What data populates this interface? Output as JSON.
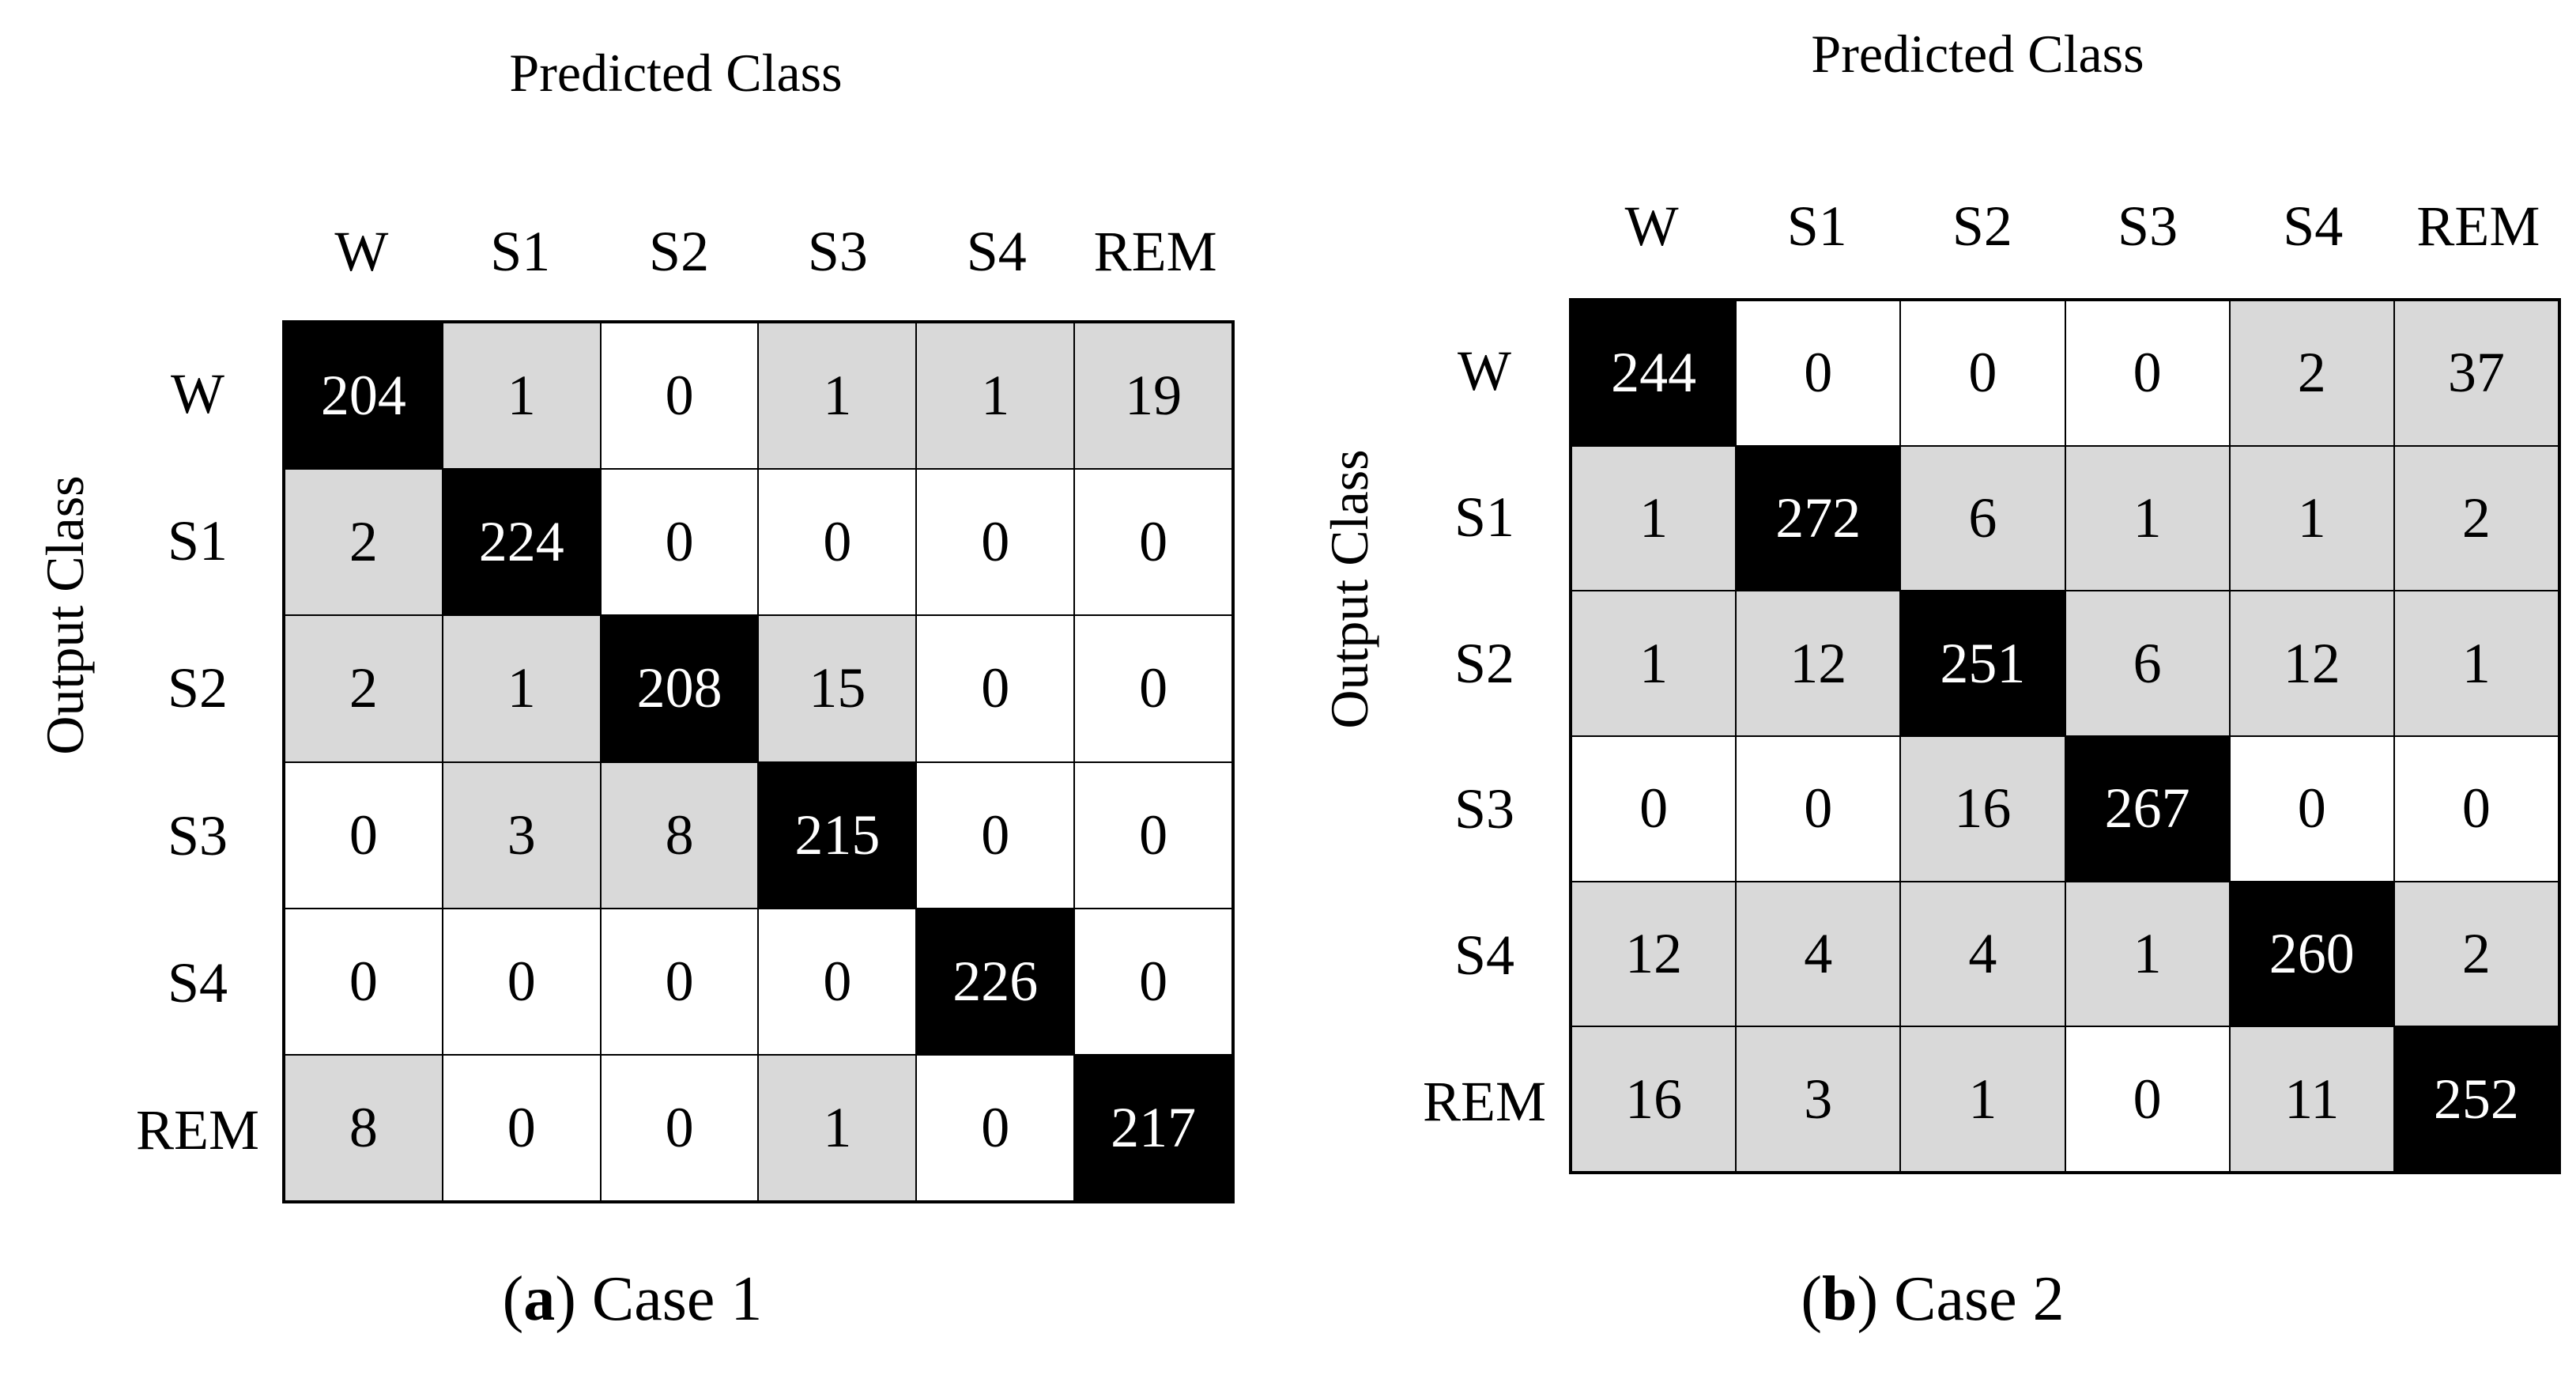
{
  "chart_data": [
    {
      "type": "heatmap",
      "title": "",
      "xlabel": "Predicted Class",
      "ylabel": "Output Class",
      "caption_letter": "a",
      "caption_text": "Case 1",
      "categories": [
        "W",
        "S1",
        "S2",
        "S3",
        "S4",
        "REM"
      ],
      "rows": [
        "W",
        "S1",
        "S2",
        "S3",
        "S4",
        "REM"
      ],
      "values": [
        [
          204,
          1,
          0,
          1,
          1,
          19
        ],
        [
          2,
          224,
          0,
          0,
          0,
          0
        ],
        [
          2,
          1,
          208,
          15,
          0,
          0
        ],
        [
          0,
          3,
          8,
          215,
          0,
          0
        ],
        [
          0,
          0,
          0,
          0,
          226,
          0
        ],
        [
          8,
          0,
          0,
          1,
          0,
          217
        ]
      ],
      "colors": {
        "diagonal": "#000000",
        "nonzero": "#d9d9d9",
        "zero": "#ffffff"
      }
    },
    {
      "type": "heatmap",
      "title": "",
      "xlabel": "Predicted Class",
      "ylabel": "Output Class",
      "caption_letter": "b",
      "caption_text": "Case 2",
      "categories": [
        "W",
        "S1",
        "S2",
        "S3",
        "S4",
        "REM"
      ],
      "rows": [
        "W",
        "S1",
        "S2",
        "S3",
        "S4",
        "REM"
      ],
      "values": [
        [
          244,
          0,
          0,
          0,
          2,
          37
        ],
        [
          1,
          272,
          6,
          1,
          1,
          2
        ],
        [
          1,
          12,
          251,
          6,
          12,
          1
        ],
        [
          0,
          0,
          16,
          267,
          0,
          0
        ],
        [
          12,
          4,
          4,
          1,
          260,
          2
        ],
        [
          16,
          3,
          1,
          0,
          11,
          252
        ]
      ],
      "colors": {
        "diagonal": "#000000",
        "nonzero": "#d9d9d9",
        "zero": "#ffffff"
      }
    }
  ]
}
